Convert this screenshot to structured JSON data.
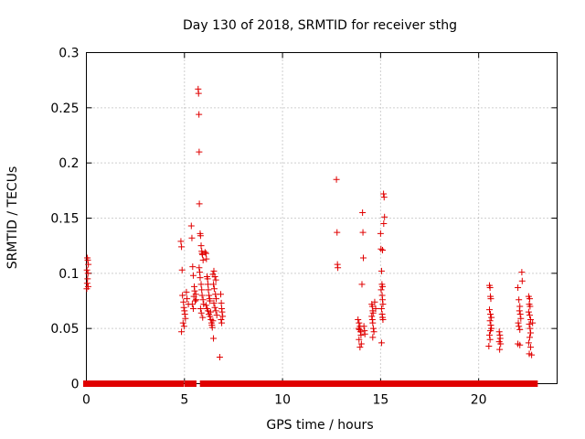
{
  "chart_data": {
    "type": "scatter",
    "title": "Day 130 of 2018, SRMTID for receiver sthg",
    "xlabel": "GPS time / hours",
    "ylabel": "SRMTID / TECUs",
    "xlim": [
      0,
      24
    ],
    "ylim": [
      0,
      0.3
    ],
    "x_ticks": [
      0,
      5,
      10,
      15,
      20
    ],
    "y_ticks": [
      0,
      0.05,
      0.1,
      0.15,
      0.2,
      0.25,
      0.3
    ],
    "x_tick_labels": [
      "0",
      "5",
      "10",
      "15",
      "20"
    ],
    "y_tick_labels": [
      "0",
      "0.05",
      "0.1",
      "0.15",
      "0.2",
      "0.25",
      "0.3"
    ],
    "grid": true,
    "marker": "+",
    "color": "#e00000",
    "zero_segments": [
      [
        0.0,
        4.8
      ],
      [
        5.15,
        5.45
      ],
      [
        5.95,
        6.05
      ],
      [
        6.35,
        6.95
      ],
      [
        7.15,
        7.3
      ],
      [
        7.45,
        13.75
      ],
      [
        14.05,
        14.5
      ],
      [
        14.7,
        14.95
      ],
      [
        15.2,
        20.5
      ],
      [
        20.75,
        21.0
      ],
      [
        21.3,
        21.85
      ],
      [
        22.05,
        22.3
      ],
      [
        22.45,
        22.85
      ]
    ],
    "series": [
      {
        "values": [
          [
            0.05,
            0.114
          ],
          [
            0.07,
            0.112
          ],
          [
            0.1,
            0.108
          ],
          [
            0.03,
            0.103
          ],
          [
            0.08,
            0.1
          ],
          [
            0.06,
            0.095
          ],
          [
            0.04,
            0.091
          ],
          [
            0.09,
            0.088
          ],
          [
            0.02,
            0.086
          ],
          [
            4.82,
            0.129
          ],
          [
            4.85,
            0.124
          ],
          [
            4.88,
            0.103
          ],
          [
            4.9,
            0.08
          ],
          [
            4.95,
            0.074
          ],
          [
            4.97,
            0.069
          ],
          [
            5.0,
            0.066
          ],
          [
            5.02,
            0.063
          ],
          [
            5.05,
            0.059
          ],
          [
            4.93,
            0.055
          ],
          [
            4.98,
            0.052
          ],
          [
            4.85,
            0.047
          ],
          [
            5.1,
            0.083
          ],
          [
            5.13,
            0.077
          ],
          [
            5.2,
            0.072
          ],
          [
            5.35,
            0.143
          ],
          [
            5.38,
            0.132
          ],
          [
            5.42,
            0.106
          ],
          [
            5.45,
            0.098
          ],
          [
            5.5,
            0.088
          ],
          [
            5.52,
            0.084
          ],
          [
            5.48,
            0.079
          ],
          [
            5.55,
            0.075
          ],
          [
            5.4,
            0.072
          ],
          [
            5.6,
            0.076
          ],
          [
            5.58,
            0.081
          ],
          [
            5.45,
            0.068
          ],
          [
            5.7,
            0.267
          ],
          [
            5.72,
            0.263
          ],
          [
            5.74,
            0.244
          ],
          [
            5.75,
            0.21
          ],
          [
            5.76,
            0.163
          ],
          [
            5.8,
            0.136
          ],
          [
            5.82,
            0.134
          ],
          [
            5.85,
            0.125
          ],
          [
            5.88,
            0.12
          ],
          [
            5.9,
            0.118
          ],
          [
            5.92,
            0.117
          ],
          [
            5.95,
            0.112
          ],
          [
            5.75,
            0.105
          ],
          [
            5.78,
            0.101
          ],
          [
            5.8,
            0.096
          ],
          [
            5.85,
            0.09
          ],
          [
            5.88,
            0.085
          ],
          [
            5.9,
            0.08
          ],
          [
            5.95,
            0.076
          ],
          [
            5.98,
            0.072
          ],
          [
            5.82,
            0.068
          ],
          [
            5.86,
            0.064
          ],
          [
            5.93,
            0.06
          ],
          [
            6.05,
            0.119
          ],
          [
            6.1,
            0.118
          ],
          [
            6.12,
            0.113
          ],
          [
            6.15,
            0.097
          ],
          [
            6.18,
            0.095
          ],
          [
            6.2,
            0.09
          ],
          [
            6.22,
            0.085
          ],
          [
            6.25,
            0.08
          ],
          [
            6.28,
            0.077
          ],
          [
            6.3,
            0.075
          ],
          [
            6.1,
            0.071
          ],
          [
            6.15,
            0.068
          ],
          [
            6.2,
            0.066
          ],
          [
            6.25,
            0.063
          ],
          [
            6.3,
            0.061
          ],
          [
            6.35,
            0.058
          ],
          [
            6.38,
            0.055
          ],
          [
            6.4,
            0.053
          ],
          [
            6.42,
            0.051
          ],
          [
            6.33,
            0.065
          ],
          [
            6.45,
            0.099
          ],
          [
            6.5,
            0.102
          ],
          [
            6.55,
            0.097
          ],
          [
            6.6,
            0.094
          ],
          [
            6.48,
            0.09
          ],
          [
            6.52,
            0.086
          ],
          [
            6.58,
            0.081
          ],
          [
            6.62,
            0.077
          ],
          [
            6.5,
            0.073
          ],
          [
            6.55,
            0.069
          ],
          [
            6.6,
            0.066
          ],
          [
            6.65,
            0.062
          ],
          [
            6.45,
            0.057
          ],
          [
            6.48,
            0.041
          ],
          [
            6.85,
            0.081
          ],
          [
            6.88,
            0.073
          ],
          [
            6.9,
            0.068
          ],
          [
            6.92,
            0.065
          ],
          [
            6.95,
            0.061
          ],
          [
            6.87,
            0.058
          ],
          [
            6.9,
            0.055
          ],
          [
            6.8,
            0.024
          ],
          [
            12.75,
            0.185
          ],
          [
            12.78,
            0.137
          ],
          [
            12.8,
            0.108
          ],
          [
            12.82,
            0.105
          ],
          [
            13.85,
            0.058
          ],
          [
            13.9,
            0.055
          ],
          [
            13.95,
            0.052
          ],
          [
            13.88,
            0.05
          ],
          [
            13.92,
            0.049
          ],
          [
            13.98,
            0.047
          ],
          [
            14.0,
            0.044
          ],
          [
            13.9,
            0.04
          ],
          [
            14.02,
            0.036
          ],
          [
            13.95,
            0.033
          ],
          [
            14.08,
            0.155
          ],
          [
            14.1,
            0.137
          ],
          [
            14.12,
            0.114
          ],
          [
            14.05,
            0.09
          ],
          [
            14.15,
            0.052
          ],
          [
            14.18,
            0.048
          ],
          [
            14.2,
            0.045
          ],
          [
            14.55,
            0.072
          ],
          [
            14.58,
            0.07
          ],
          [
            14.6,
            0.066
          ],
          [
            14.62,
            0.064
          ],
          [
            14.55,
            0.061
          ],
          [
            14.58,
            0.058
          ],
          [
            14.6,
            0.055
          ],
          [
            14.63,
            0.05
          ],
          [
            14.66,
            0.047
          ],
          [
            14.6,
            0.042
          ],
          [
            14.7,
            0.074
          ],
          [
            14.75,
            0.068
          ],
          [
            15.0,
            0.136
          ],
          [
            15.02,
            0.122
          ],
          [
            15.05,
            0.102
          ],
          [
            15.07,
            0.09
          ],
          [
            15.1,
            0.088
          ],
          [
            15.03,
            0.085
          ],
          [
            15.08,
            0.08
          ],
          [
            15.1,
            0.076
          ],
          [
            15.12,
            0.072
          ],
          [
            15.05,
            0.068
          ],
          [
            15.08,
            0.063
          ],
          [
            15.1,
            0.06
          ],
          [
            15.12,
            0.058
          ],
          [
            15.05,
            0.037
          ],
          [
            15.15,
            0.172
          ],
          [
            15.18,
            0.169
          ],
          [
            15.2,
            0.151
          ],
          [
            15.16,
            0.145
          ],
          [
            15.1,
            0.121
          ],
          [
            20.55,
            0.089
          ],
          [
            20.58,
            0.087
          ],
          [
            20.6,
            0.079
          ],
          [
            20.62,
            0.077
          ],
          [
            20.55,
            0.067
          ],
          [
            20.6,
            0.063
          ],
          [
            20.65,
            0.06
          ],
          [
            20.58,
            0.057
          ],
          [
            20.62,
            0.053
          ],
          [
            20.65,
            0.05
          ],
          [
            20.6,
            0.048
          ],
          [
            20.55,
            0.044
          ],
          [
            20.58,
            0.04
          ],
          [
            20.52,
            0.034
          ],
          [
            21.05,
            0.047
          ],
          [
            21.08,
            0.044
          ],
          [
            21.1,
            0.041
          ],
          [
            21.05,
            0.038
          ],
          [
            21.12,
            0.036
          ],
          [
            21.07,
            0.031
          ],
          [
            22.0,
            0.087
          ],
          [
            22.05,
            0.076
          ],
          [
            22.1,
            0.07
          ],
          [
            22.08,
            0.066
          ],
          [
            22.12,
            0.063
          ],
          [
            22.15,
            0.059
          ],
          [
            22.02,
            0.055
          ],
          [
            22.05,
            0.052
          ],
          [
            22.1,
            0.049
          ],
          [
            22.2,
            0.101
          ],
          [
            22.22,
            0.093
          ],
          [
            22.0,
            0.036
          ],
          [
            22.1,
            0.035
          ],
          [
            22.55,
            0.079
          ],
          [
            22.6,
            0.077
          ],
          [
            22.58,
            0.072
          ],
          [
            22.62,
            0.07
          ],
          [
            22.55,
            0.065
          ],
          [
            22.6,
            0.062
          ],
          [
            22.65,
            0.058
          ],
          [
            22.58,
            0.054
          ],
          [
            22.62,
            0.05
          ],
          [
            22.65,
            0.046
          ],
          [
            22.6,
            0.042
          ],
          [
            22.55,
            0.037
          ],
          [
            22.65,
            0.033
          ],
          [
            22.58,
            0.027
          ],
          [
            22.7,
            0.026
          ],
          [
            22.75,
            0.055
          ]
        ]
      }
    ]
  }
}
